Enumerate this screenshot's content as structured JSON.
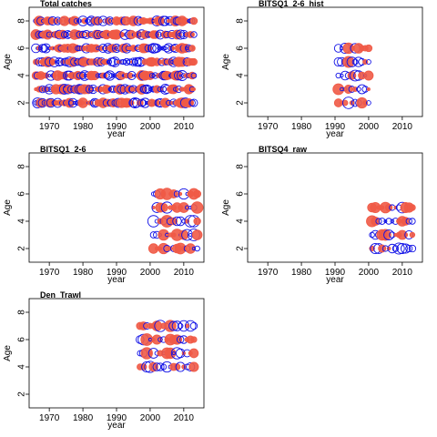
{
  "colors": {
    "positive": "#f05a46",
    "negative": "#1010e6"
  },
  "chart_data": [
    {
      "type": "scatter",
      "title": "Total catches",
      "xlabel": "year",
      "ylabel": "Age",
      "xlim": [
        1964,
        2016
      ],
      "ylim": [
        1,
        9
      ],
      "x_ticks": [
        1970,
        1980,
        1990,
        2000,
        2010
      ],
      "y_ticks": [
        2,
        4,
        6,
        8
      ],
      "x_range": [
        1966,
        2013
      ],
      "ages": [
        2,
        3,
        4,
        5,
        6,
        7,
        8
      ]
    },
    {
      "type": "scatter",
      "title": "BITSQ1_2-6_hist",
      "xlabel": "year",
      "ylabel": "Age",
      "xlim": [
        1964,
        2016
      ],
      "ylim": [
        1,
        9
      ],
      "x_ticks": [
        1970,
        1980,
        1990,
        2000,
        2010
      ],
      "y_ticks": [
        2,
        4,
        6,
        8
      ],
      "x_range": [
        1991,
        2000
      ],
      "ages": [
        2,
        3,
        4,
        5,
        6
      ]
    },
    {
      "type": "scatter",
      "title": "BITSQ4_raw",
      "xlabel": "year",
      "ylabel": "Age",
      "xlim": [
        1964,
        2016
      ],
      "ylim": [
        1,
        9
      ],
      "x_ticks": [
        1970,
        1980,
        1990,
        2000,
        2010
      ],
      "y_ticks": [
        2,
        4,
        6,
        8
      ],
      "x_range": [
        2001,
        2013
      ],
      "ages": [
        2,
        3,
        4,
        5
      ]
    },
    {
      "type": "scatter",
      "title": "BITSQ1_2-6",
      "xlabel": "year",
      "ylabel": "Age",
      "xlim": [
        1964,
        2016
      ],
      "ylim": [
        1,
        9
      ],
      "x_ticks": [
        1970,
        1980,
        1990,
        2000,
        2010
      ],
      "y_ticks": [
        2,
        4,
        6,
        8
      ],
      "x_range": [
        2001,
        2014
      ],
      "ages": [
        2,
        3,
        4,
        5,
        6
      ]
    },
    {
      "type": "scatter",
      "title": "Den_Trawl",
      "xlabel": "year",
      "ylabel": "Age",
      "xlim": [
        1964,
        2016
      ],
      "ylim": [
        1,
        9
      ],
      "x_ticks": [
        1970,
        1980,
        1990,
        2000,
        2010
      ],
      "y_ticks": [
        2,
        4,
        6,
        8
      ],
      "x_range": [
        1997,
        2013
      ],
      "ages": [
        4,
        5,
        6,
        7
      ]
    }
  ]
}
